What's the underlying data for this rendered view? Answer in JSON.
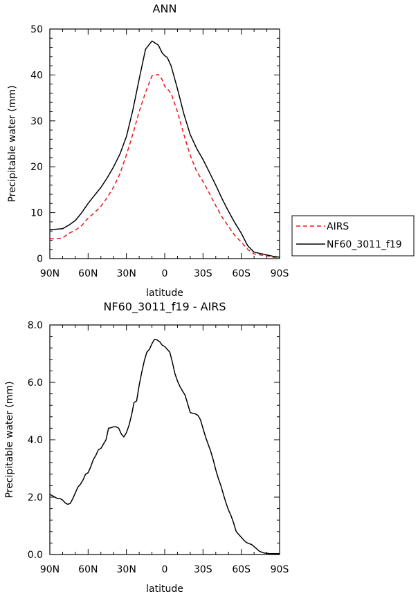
{
  "chart_data": [
    {
      "type": "line",
      "title": "ANN",
      "xlabel": "latitude",
      "ylabel": "Precipitable water (mm)",
      "xlim": [
        90,
        -90
      ],
      "ylim": [
        0,
        50
      ],
      "x_ticks": [
        90,
        60,
        30,
        0,
        -30,
        -60,
        -90
      ],
      "x_tick_labels": [
        "90N",
        "60N",
        "30N",
        "0",
        "30S",
        "60S",
        "90S"
      ],
      "y_ticks": [
        0,
        10,
        20,
        30,
        40,
        50
      ],
      "y_tick_labels": [
        "0",
        "10",
        "20",
        "30",
        "40",
        "50"
      ],
      "grid": false,
      "legend_position": "right",
      "series": [
        {
          "name": "AIRS",
          "color": "#e8151b",
          "style": "dashed",
          "x": [
            90,
            85,
            80,
            75,
            70,
            65,
            60,
            55,
            50,
            45,
            40,
            35,
            30,
            25,
            20,
            15,
            10,
            5,
            2,
            0,
            -2,
            -5,
            -10,
            -15,
            -20,
            -25,
            -30,
            -35,
            -40,
            -45,
            -50,
            -55,
            -60,
            -65,
            -70,
            -75,
            -80,
            -85,
            -90
          ],
          "y": [
            4.3,
            4.3,
            4.5,
            5.5,
            6.2,
            7.2,
            8.8,
            10.0,
            11.4,
            13.3,
            15.6,
            18.5,
            22.6,
            27.1,
            32.0,
            36.2,
            39.8,
            40.1,
            39.0,
            37.5,
            37.0,
            36.0,
            32.0,
            27.0,
            22.5,
            19.0,
            16.8,
            14.2,
            11.5,
            9.0,
            7.0,
            5.0,
            3.6,
            2.0,
            1.0,
            0.8,
            0.6,
            0.3,
            0.2
          ]
        },
        {
          "name": "NF60_3011_f19",
          "color": "#000000",
          "style": "solid",
          "x": [
            90,
            85,
            80,
            75,
            70,
            65,
            60,
            55,
            50,
            45,
            40,
            35,
            30,
            25,
            20,
            15,
            10,
            5,
            2,
            0,
            -2,
            -5,
            -10,
            -15,
            -20,
            -25,
            -30,
            -35,
            -40,
            -45,
            -50,
            -55,
            -60,
            -65,
            -70,
            -75,
            -80,
            -85,
            -90
          ],
          "y": [
            6.3,
            6.4,
            6.5,
            7.3,
            8.3,
            10.0,
            12.0,
            13.8,
            15.5,
            17.6,
            20.0,
            22.8,
            26.6,
            32.3,
            39.1,
            45.6,
            47.4,
            46.5,
            44.8,
            44.2,
            43.8,
            42.0,
            37.0,
            31.5,
            27.0,
            24.0,
            21.6,
            18.8,
            16.0,
            13.0,
            10.3,
            7.8,
            5.5,
            2.8,
            1.4,
            1.1,
            0.8,
            0.5,
            0.3
          ]
        }
      ]
    },
    {
      "type": "line",
      "title": "NF60_3011_f19 - AIRS",
      "xlabel": "latitude",
      "ylabel": "Precipitable water (mm)",
      "xlim": [
        90,
        -90
      ],
      "ylim": [
        0,
        8
      ],
      "x_ticks": [
        90,
        60,
        30,
        0,
        -30,
        -60,
        -90
      ],
      "x_tick_labels": [
        "90N",
        "60N",
        "30N",
        "0",
        "30S",
        "60S",
        "90S"
      ],
      "y_ticks": [
        0,
        2,
        4,
        6,
        8
      ],
      "y_tick_labels": [
        "0.0",
        "2.0",
        "4.0",
        "6.0",
        "8.0"
      ],
      "grid": false,
      "series": [
        {
          "color": "#000000",
          "style": "solid",
          "x": [
            90,
            88,
            86,
            84,
            82,
            80,
            78,
            76,
            74,
            72,
            70,
            68,
            66,
            64,
            62,
            60,
            58,
            56,
            54,
            52,
            50,
            48,
            46,
            44,
            42,
            40,
            38,
            36,
            34,
            32,
            30,
            28,
            26,
            24,
            22,
            20,
            18,
            16,
            14,
            12,
            10,
            8,
            6,
            4,
            2,
            0,
            -2,
            -4,
            -6,
            -8,
            -10,
            -12,
            -14,
            -16,
            -18,
            -20,
            -22,
            -24,
            -26,
            -28,
            -30,
            -32,
            -34,
            -36,
            -38,
            -40,
            -42,
            -44,
            -46,
            -48,
            -50,
            -52,
            -54,
            -56,
            -58,
            -60,
            -62,
            -64,
            -66,
            -68,
            -70,
            -72,
            -74,
            -76,
            -78,
            -80,
            -82,
            -84,
            -86,
            -88,
            -90
          ],
          "y": [
            2.1,
            2.05,
            2.0,
            1.95,
            1.95,
            1.9,
            1.8,
            1.75,
            1.78,
            1.95,
            2.15,
            2.35,
            2.45,
            2.6,
            2.8,
            2.85,
            3.05,
            3.3,
            3.45,
            3.65,
            3.7,
            3.85,
            4.0,
            4.4,
            4.42,
            4.45,
            4.45,
            4.4,
            4.2,
            4.1,
            4.25,
            4.5,
            4.85,
            5.3,
            5.35,
            5.9,
            6.35,
            6.75,
            7.05,
            7.15,
            7.35,
            7.5,
            7.48,
            7.42,
            7.3,
            7.25,
            7.15,
            7.05,
            6.7,
            6.3,
            6.05,
            5.85,
            5.7,
            5.55,
            5.25,
            4.95,
            4.92,
            4.9,
            4.85,
            4.7,
            4.4,
            4.1,
            3.85,
            3.6,
            3.3,
            2.95,
            2.65,
            2.4,
            2.1,
            1.8,
            1.55,
            1.35,
            1.1,
            0.8,
            0.7,
            0.6,
            0.5,
            0.42,
            0.38,
            0.35,
            0.28,
            0.2,
            0.12,
            0.08,
            0.05,
            0.04,
            0.03,
            0.03,
            0.03,
            0.03,
            0.03
          ]
        }
      ]
    }
  ]
}
